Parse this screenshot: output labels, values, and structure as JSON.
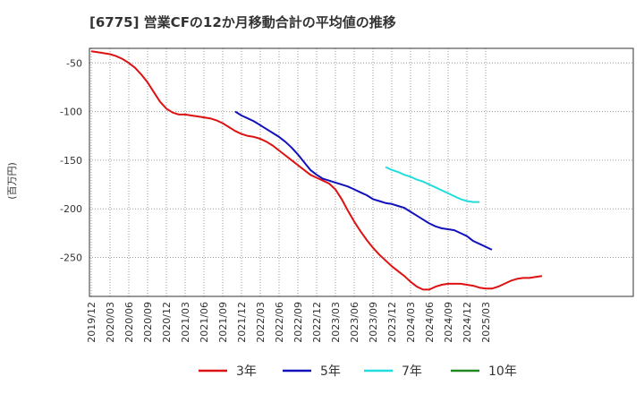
{
  "chart_data": {
    "type": "line",
    "title": "[6775]  営業CFの12か月移動合計の平均値の推移",
    "ylabel": "(百万円)",
    "ylim": [
      -290,
      -35
    ],
    "yticks": [
      -50,
      -100,
      -150,
      -200,
      -250
    ],
    "y_tick_labels": [
      "-50",
      "-100",
      "-150",
      "-200",
      "-250"
    ],
    "x_tick_labels": [
      "2019/12",
      "2020/03",
      "2020/06",
      "2020/09",
      "2020/12",
      "2021/03",
      "2021/06",
      "2021/09",
      "2021/12",
      "2022/03",
      "2022/06",
      "2022/09",
      "2022/12",
      "2023/03",
      "2023/06",
      "2023/09",
      "2023/12",
      "2024/03",
      "2024/06",
      "2024/09",
      "2024/12",
      "2025/03"
    ],
    "grid": true,
    "legend_position": "bottom",
    "series": [
      {
        "name": "3年",
        "color": "#dd1111",
        "start": "2019/12",
        "values": [
          -38,
          -39,
          -40,
          -41,
          -43,
          -46,
          -50,
          -55,
          -62,
          -70,
          -80,
          -90,
          -97,
          -101,
          -103,
          -103,
          -104,
          -105,
          -106,
          -107,
          -109,
          -112,
          -116,
          -120,
          -123,
          -125,
          -126,
          -128,
          -131,
          -135,
          -140,
          -145,
          -150,
          -155,
          -160,
          -165,
          -168,
          -171,
          -174,
          -180,
          -190,
          -202,
          -213,
          -223,
          -232,
          -240,
          -247,
          -253,
          -259,
          -264,
          -269,
          -275,
          -280,
          -283,
          -283,
          -280,
          -278,
          -277,
          -277,
          -277,
          -278,
          -279,
          -281,
          -282,
          -282,
          -280,
          -277,
          -274,
          -272,
          -271,
          -271,
          -270,
          -269
        ]
      },
      {
        "name": "5年",
        "color": "#1111bb",
        "start": "2021/11",
        "values": [
          -100,
          -104,
          -107,
          -110,
          -114,
          -118,
          -122,
          -126,
          -131,
          -137,
          -144,
          -152,
          -160,
          -165,
          -169,
          -171,
          -173,
          -175,
          -177,
          -180,
          -183,
          -186,
          -190,
          -192,
          -194,
          -195,
          -197,
          -199,
          -203,
          -207,
          -211,
          -215,
          -218,
          -220,
          -221,
          -222,
          -225,
          -228,
          -233,
          -236,
          -239,
          -242
        ]
      },
      {
        "name": "7年",
        "color": "#22dddd",
        "start": "2023/11",
        "values": [
          -157,
          -160,
          -162,
          -165,
          -167,
          -170,
          -172,
          -175,
          -178,
          -181,
          -184,
          -187,
          -190,
          -192,
          -193,
          -193
        ]
      },
      {
        "name": "10年",
        "color": "#228822",
        "start": "",
        "values": []
      }
    ]
  }
}
